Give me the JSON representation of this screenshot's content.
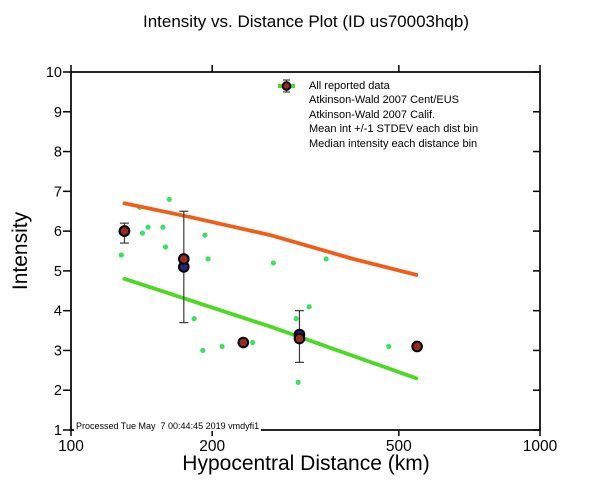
{
  "title": "Intensity vs. Distance Plot (ID us70003hqb)",
  "processed_note": "Processed Tue May  7 00:44:45 2019 vmdyfi1",
  "colors": {
    "all_data_dot": "#39e161",
    "ceus_line": "#f25c19",
    "calif_line": "#4cd922",
    "mean_fill": "#26267e",
    "median_fill": "#992a23",
    "marker_stroke": "#000000",
    "errorbar": "#3a3a3a",
    "frame": "#000000"
  },
  "legend": {
    "items": [
      {
        "type": "dot",
        "label": "All reported data"
      },
      {
        "type": "ceus-line",
        "label": "Atkinson-Wald 2007 Cent/EUS"
      },
      {
        "type": "calif-line",
        "label": "Atkinson-Wald 2007 Calif."
      },
      {
        "type": "mean",
        "label": "Mean int +/-1 STDEV each dist bin"
      },
      {
        "type": "median",
        "label": "Median intensity each distance bin"
      }
    ]
  },
  "chart_data": {
    "type": "scatter",
    "title": "Intensity vs. Distance Plot (ID us70003hqb)",
    "xlabel": "Hypocentral Distance (km)",
    "ylabel": "Intensity",
    "x_scale": "log",
    "xlim": [
      100,
      1000
    ],
    "ylim": [
      1,
      10
    ],
    "x_ticks": [
      100,
      200,
      500,
      1000
    ],
    "y_ticks": [
      1,
      2,
      3,
      4,
      5,
      6,
      7,
      8,
      9,
      10
    ],
    "grid": false,
    "legend_position": "upper right inside",
    "series": [
      {
        "name": "All reported data",
        "kind": "scatter",
        "points": [
          [
            162,
            6.8
          ],
          [
            140,
            6.6
          ],
          [
            146,
            6.1
          ],
          [
            157,
            6.1
          ],
          [
            142,
            5.95
          ],
          [
            159,
            5.6
          ],
          [
            128,
            5.4
          ],
          [
            193,
            5.9
          ],
          [
            196,
            5.3
          ],
          [
            270,
            5.2
          ],
          [
            350,
            5.3
          ],
          [
            183,
            3.8
          ],
          [
            191,
            3.0
          ],
          [
            210,
            3.1
          ],
          [
            244,
            3.2
          ],
          [
            302,
            3.8
          ],
          [
            322,
            4.1
          ],
          [
            305,
            2.2
          ],
          [
            476,
            3.1
          ]
        ]
      },
      {
        "name": "Atkinson-Wald 2007 Cent/EUS",
        "kind": "line",
        "points": [
          [
            130,
            6.7
          ],
          [
            180,
            6.35
          ],
          [
            266,
            5.9
          ],
          [
            400,
            5.3
          ],
          [
            545,
            4.9
          ]
        ]
      },
      {
        "name": "Atkinson-Wald 2007 Calif.",
        "kind": "line",
        "points": [
          [
            130,
            4.8
          ],
          [
            266,
            3.6
          ],
          [
            545,
            2.3
          ]
        ]
      },
      {
        "name": "Mean int +/-1 STDEV each dist bin",
        "kind": "scatter-errorbar",
        "points": [
          {
            "x": 130,
            "y": 6.0,
            "lo": 5.7,
            "hi": 6.2
          },
          {
            "x": 174,
            "y": 5.1,
            "lo": 3.7,
            "hi": 6.5
          },
          {
            "x": 307,
            "y": 3.4,
            "lo": 2.7,
            "hi": 4.0
          }
        ]
      },
      {
        "name": "Median intensity each distance bin",
        "kind": "scatter",
        "points": [
          [
            130,
            6.0
          ],
          [
            174,
            5.3
          ],
          [
            233,
            3.2
          ],
          [
            307,
            3.3
          ],
          [
            547,
            3.1
          ]
        ]
      }
    ]
  }
}
